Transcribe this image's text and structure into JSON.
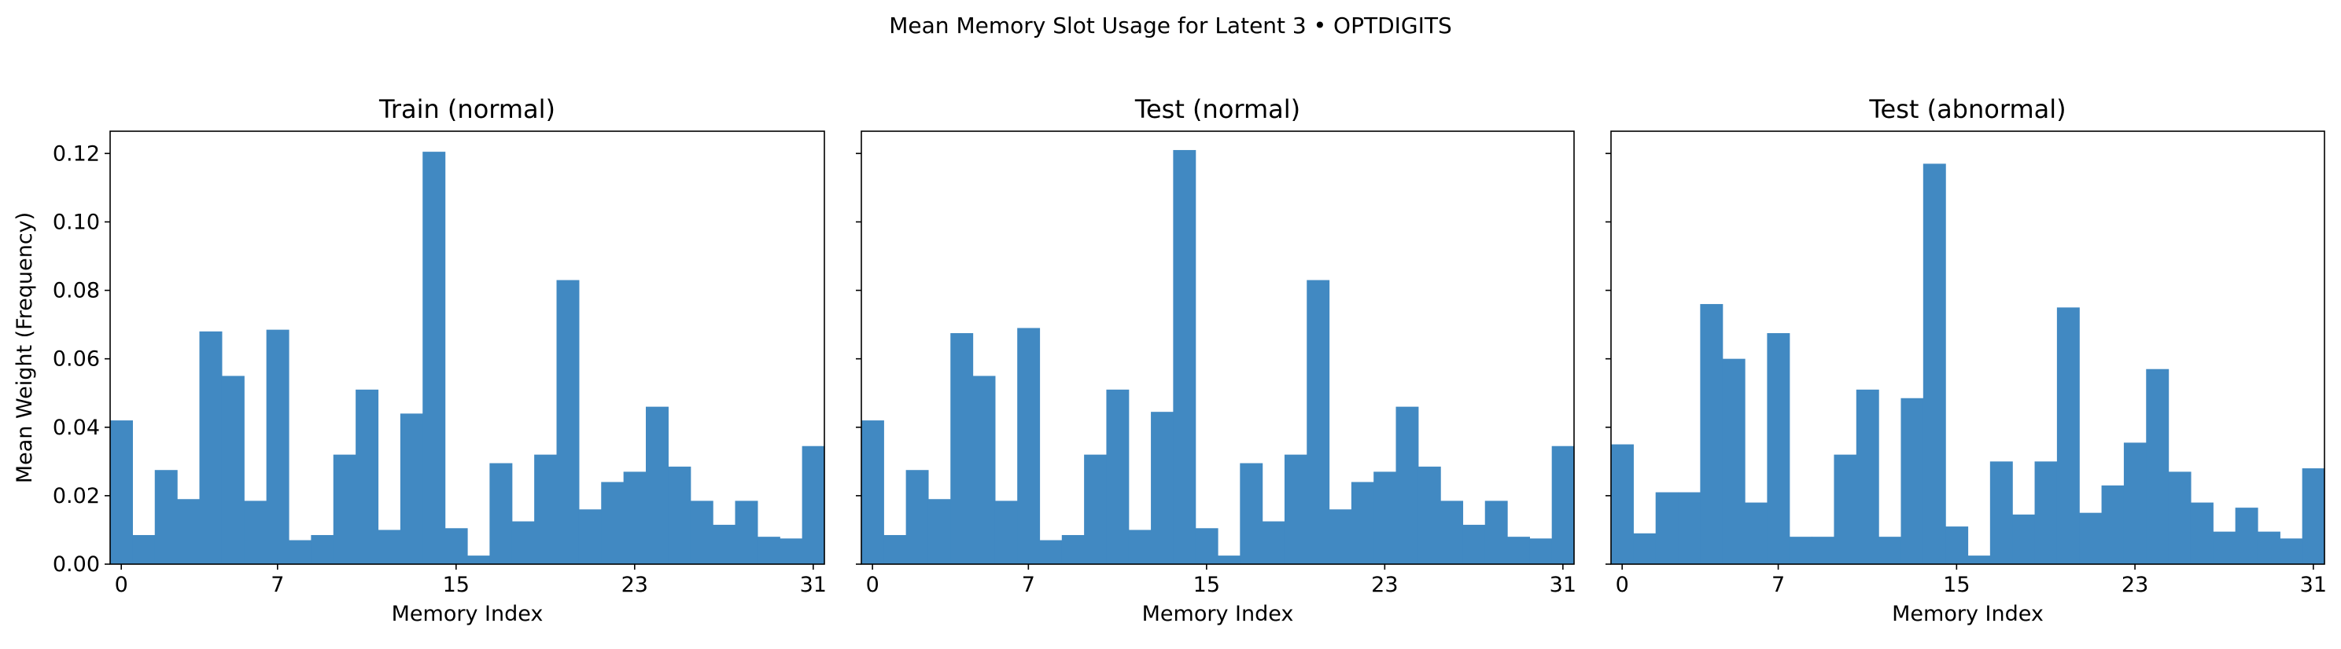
{
  "figure": {
    "suptitle": "Mean Memory Slot Usage for Latent 3 • OPTDIGITS",
    "bar_color": "#4189c2"
  },
  "chart_data": [
    {
      "type": "bar",
      "title": "Train (normal)",
      "xlabel": "Memory Index",
      "ylabel": "Mean Weight (Frequency)",
      "categories": [
        0,
        1,
        2,
        3,
        4,
        5,
        6,
        7,
        8,
        9,
        10,
        11,
        12,
        13,
        14,
        15,
        16,
        17,
        18,
        19,
        20,
        21,
        22,
        23,
        24,
        25,
        26,
        27,
        28,
        29,
        30,
        31
      ],
      "values": [
        0.042,
        0.0085,
        0.0275,
        0.019,
        0.068,
        0.055,
        0.0185,
        0.0685,
        0.007,
        0.0085,
        0.032,
        0.051,
        0.01,
        0.044,
        0.1205,
        0.0105,
        0.0025,
        0.0295,
        0.0125,
        0.032,
        0.083,
        0.016,
        0.024,
        0.027,
        0.046,
        0.0285,
        0.0185,
        0.0115,
        0.0185,
        0.008,
        0.0075,
        0.0345
      ],
      "xticks": [
        0,
        7,
        15,
        23,
        31
      ],
      "yticks": [
        "0.00",
        "0.02",
        "0.04",
        "0.06",
        "0.08",
        "0.10",
        "0.12"
      ],
      "ylim": [
        0,
        0.1265
      ],
      "xlim": [
        -0.5,
        31.5
      ],
      "grid": false
    },
    {
      "type": "bar",
      "title": "Test (normal)",
      "xlabel": "Memory Index",
      "ylabel": "",
      "categories": [
        0,
        1,
        2,
        3,
        4,
        5,
        6,
        7,
        8,
        9,
        10,
        11,
        12,
        13,
        14,
        15,
        16,
        17,
        18,
        19,
        20,
        21,
        22,
        23,
        24,
        25,
        26,
        27,
        28,
        29,
        30,
        31
      ],
      "values": [
        0.042,
        0.0085,
        0.0275,
        0.019,
        0.0675,
        0.055,
        0.0185,
        0.069,
        0.007,
        0.0085,
        0.032,
        0.051,
        0.01,
        0.0445,
        0.121,
        0.0105,
        0.0025,
        0.0295,
        0.0125,
        0.032,
        0.083,
        0.016,
        0.024,
        0.027,
        0.046,
        0.0285,
        0.0185,
        0.0115,
        0.0185,
        0.008,
        0.0075,
        0.0345
      ],
      "xticks": [
        0,
        7,
        15,
        23,
        31
      ],
      "ylim": [
        0,
        0.1265
      ],
      "xlim": [
        -0.5,
        31.5
      ],
      "grid": false
    },
    {
      "type": "bar",
      "title": "Test (abnormal)",
      "xlabel": "Memory Index",
      "ylabel": "",
      "categories": [
        0,
        1,
        2,
        3,
        4,
        5,
        6,
        7,
        8,
        9,
        10,
        11,
        12,
        13,
        14,
        15,
        16,
        17,
        18,
        19,
        20,
        21,
        22,
        23,
        24,
        25,
        26,
        27,
        28,
        29,
        30,
        31
      ],
      "values": [
        0.035,
        0.009,
        0.021,
        0.021,
        0.076,
        0.06,
        0.018,
        0.0675,
        0.008,
        0.008,
        0.032,
        0.051,
        0.008,
        0.0485,
        0.117,
        0.011,
        0.0025,
        0.03,
        0.0145,
        0.03,
        0.075,
        0.015,
        0.023,
        0.0355,
        0.057,
        0.027,
        0.018,
        0.0095,
        0.0165,
        0.0095,
        0.0075,
        0.028
      ],
      "xticks": [
        0,
        7,
        15,
        23,
        31
      ],
      "ylim": [
        0,
        0.1265
      ],
      "xlim": [
        -0.5,
        31.5
      ],
      "grid": false
    }
  ]
}
